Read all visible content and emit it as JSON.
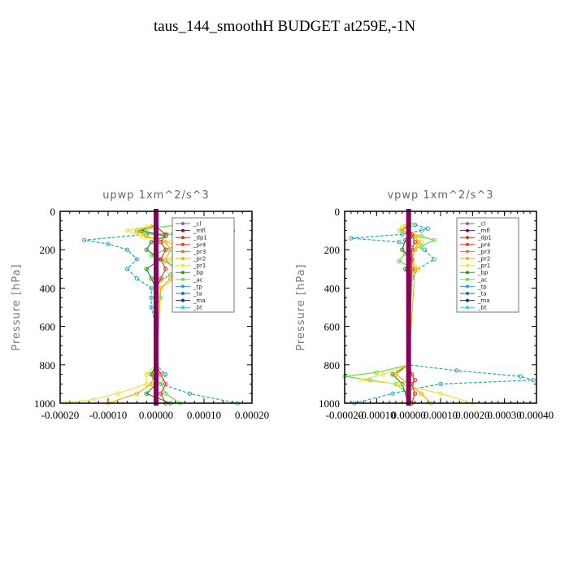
{
  "title": "taus_144_smoothH  BUDGET at259E,-1N",
  "legend_labels": [
    "_cl",
    "_mfl",
    "_dp1",
    "_pr4",
    "_pr3",
    "_pr2",
    "_pr1",
    "_bp",
    "_ac",
    "_tp",
    "_ta",
    "_ma",
    "_bt"
  ],
  "colors": {
    "_cl": "#9b59b6",
    "_mfl": "#8b0057",
    "_dp1": "#c0392b",
    "_pr4": "#e53935",
    "_pr3": "#f06a4a",
    "_pr2": "#f4b000",
    "_pr1": "#f0e040",
    "_bp": "#2e8b2e",
    "_ac": "#66dd44",
    "_tp": "#2aa7b8",
    "_ta": "#1f6fb5",
    "_ma": "#1b2f8a",
    "_bt": "#26d0d8"
  },
  "chart_data": [
    {
      "type": "line",
      "title": "upwp   1xm^2/s^3",
      "ylabel": "Pressure [hPa]",
      "xlim": [
        -0.0002,
        0.0002
      ],
      "ylim": [
        1000,
        0
      ],
      "x_ticks": [
        "-0.00020",
        "-0.00010",
        "0.00000",
        "0.00010",
        "0.00020"
      ],
      "y_ticks": [
        "0",
        "200",
        "400",
        "600",
        "800",
        "1000"
      ],
      "legend_position": "top-right",
      "series": [
        {
          "name": "_tp",
          "y": [
            70,
            90,
            100,
            120,
            150,
            170,
            200,
            250,
            300,
            350,
            400,
            450,
            500,
            600,
            700,
            800,
            850,
            900,
            950,
            1000
          ],
          "x": [
            4e-05,
            8e-05,
            0.00016,
            -2e-05,
            -0.00015,
            -0.0001,
            -6e-05,
            -4e-05,
            -6e-05,
            -4e-05,
            -1e-05,
            -1e-05,
            -1e-05,
            0,
            0,
            0,
            2e-05,
            1e-05,
            7e-05,
            0.00017
          ]
        },
        {
          "name": "_ac",
          "y": [
            70,
            90,
            110,
            130,
            150,
            180,
            200,
            230,
            260,
            300,
            330,
            360,
            400,
            450,
            500,
            800,
            850,
            900,
            950,
            1000
          ],
          "x": [
            5e-05,
            -2e-05,
            -4e-05,
            8e-05,
            5e-05,
            4e-05,
            2e-05,
            -1e-05,
            2e-05,
            4e-05,
            3e-05,
            1e-05,
            0,
            1e-05,
            0,
            0,
            -1e-05,
            1e-05,
            2e-05,
            5e-05
          ]
        },
        {
          "name": "_bp",
          "y": [
            70,
            100,
            130,
            160,
            200,
            250,
            300,
            350,
            400,
            800,
            850,
            900,
            950,
            1000
          ],
          "x": [
            0,
            -3e-05,
            2e-05,
            -1e-05,
            -2e-05,
            1e-05,
            -2e-05,
            -1e-05,
            0,
            0,
            -1e-05,
            0,
            -2e-05,
            3e-05
          ]
        },
        {
          "name": "_pr1",
          "y": [
            80,
            100,
            130,
            160,
            200,
            250,
            300,
            350,
            400,
            500,
            800,
            850,
            900,
            950,
            980,
            1000
          ],
          "x": [
            -2e-05,
            -6e-05,
            -3e-05,
            3e-05,
            4e-05,
            3e-05,
            5e-05,
            4e-05,
            1e-05,
            0,
            0,
            -2e-05,
            -2e-05,
            -8e-05,
            -0.00013,
            -0.00019
          ]
        },
        {
          "name": "_pr2",
          "y": [
            80,
            100,
            130,
            160,
            200,
            250,
            300,
            350,
            400,
            800,
            900,
            950,
            1000
          ],
          "x": [
            -1e-05,
            -4e-05,
            -2e-05,
            2e-05,
            3e-05,
            2e-05,
            4e-05,
            3e-05,
            1e-05,
            0,
            -1e-05,
            -4e-05,
            -0.0001
          ]
        },
        {
          "name": "_pr4",
          "y": [
            80,
            120,
            160,
            200,
            250,
            300,
            350,
            400,
            500,
            800,
            850,
            900,
            950,
            1000
          ],
          "x": [
            0,
            2e-05,
            1e-05,
            2e-05,
            1e-05,
            2e-05,
            1e-05,
            0,
            0,
            0,
            1e-05,
            2e-05,
            1e-05,
            2e-05
          ]
        },
        {
          "name": "_mfl",
          "y": [
            0,
            200,
            400,
            600,
            800,
            1000
          ],
          "x": [
            0,
            0,
            0,
            0,
            0,
            0
          ]
        }
      ]
    },
    {
      "type": "line",
      "title": "vpwp   1xm^2/s^3",
      "ylabel": "Pressure [hPa]",
      "xlim": [
        -0.0002,
        0.0004
      ],
      "ylim": [
        1000,
        0
      ],
      "x_ticks": [
        "-0.00020",
        "-0.00010",
        "0.00000",
        "0.00010",
        "0.00020",
        "0.00030",
        "0.00040"
      ],
      "y_ticks": [
        "0",
        "200",
        "400",
        "600",
        "800",
        "1000"
      ],
      "legend_position": "top-right",
      "series": [
        {
          "name": "_tp",
          "y": [
            70,
            90,
            100,
            120,
            140,
            160,
            200,
            250,
            300,
            350,
            800,
            830,
            860,
            880,
            900,
            930,
            950,
            1000
          ],
          "x": [
            2e-05,
            6e-05,
            4e-05,
            -2e-05,
            -0.00018,
            -3e-05,
            5e-05,
            8e-05,
            3e-05,
            1e-05,
            0,
            0.00015,
            0.00035,
            0.00039,
            0.0001,
            0,
            -5e-05,
            -0.00017
          ]
        },
        {
          "name": "_ac",
          "y": [
            70,
            100,
            130,
            150,
            180,
            220,
            260,
            300,
            350,
            800,
            840,
            860,
            880,
            900,
            950,
            1000
          ],
          "x": [
            1e-05,
            -3e-05,
            4e-05,
            8e-05,
            4e-05,
            -1e-05,
            -3e-05,
            2e-05,
            0,
            0,
            -0.0001,
            -0.0002,
            -0.00012,
            -4e-05,
            0,
            1e-05
          ]
        },
        {
          "name": "_bp",
          "y": [
            70,
            100,
            130,
            150,
            200,
            250,
            300,
            350,
            800,
            850,
            900,
            1000
          ],
          "x": [
            0,
            -2e-05,
            1e-05,
            -1e-05,
            -2e-05,
            1e-05,
            -1e-05,
            0,
            0,
            -5e-05,
            -2e-05,
            0
          ]
        },
        {
          "name": "_pr1",
          "y": [
            80,
            100,
            130,
            160,
            200,
            250,
            300,
            350,
            800,
            850,
            880,
            900,
            950,
            1000
          ],
          "x": [
            -2e-05,
            -3e-05,
            3e-05,
            4e-05,
            2e-05,
            1e-05,
            3e-05,
            0,
            0,
            -8e-05,
            -0.00015,
            -3e-05,
            0.0001,
            0.0002
          ]
        },
        {
          "name": "_pr2",
          "y": [
            80,
            100,
            130,
            160,
            200,
            250,
            300,
            800,
            850,
            900,
            950,
            1000
          ],
          "x": [
            -1e-05,
            -2e-05,
            2e-05,
            3e-05,
            2e-05,
            1e-05,
            2e-05,
            0,
            -4e-05,
            0,
            4e-05,
            7e-05
          ]
        },
        {
          "name": "_pr4",
          "y": [
            80,
            120,
            160,
            200,
            250,
            300,
            800,
            850,
            880,
            900,
            950,
            1000
          ],
          "x": [
            0,
            1e-05,
            2e-05,
            1e-05,
            1e-05,
            1e-05,
            0,
            1e-05,
            2e-05,
            1e-05,
            2e-05,
            1e-05
          ]
        },
        {
          "name": "_mfl",
          "y": [
            0,
            200,
            400,
            600,
            800,
            1000
          ],
          "x": [
            0,
            0,
            0,
            0,
            0,
            0
          ]
        }
      ]
    }
  ]
}
